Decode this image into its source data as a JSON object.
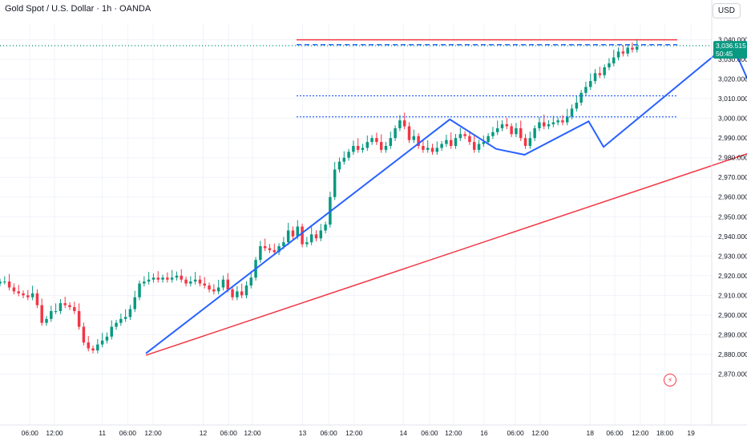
{
  "header": {
    "title": "Gold Spot / U.S. Dollar · 1h · OANDA",
    "currency": "USD"
  },
  "price_badge": {
    "price": "3,036.515",
    "countdown": "50:45",
    "color": "#089981"
  },
  "colors": {
    "up": "#089981",
    "down": "#f23645",
    "blue": "#2962ff",
    "red": "#f23645",
    "grid": "#f0f3fa",
    "axis_text": "#131722"
  },
  "icons": [
    "flash-icon"
  ],
  "chart_data": {
    "type": "candlestick",
    "title": "Gold Spot / U.S. Dollar · 1h · OANDA",
    "y_axis": {
      "ticks": [
        "2,870.000",
        "2,880.000",
        "2,890.000",
        "2,900.000",
        "2,910.000",
        "2,920.000",
        "2,930.000",
        "2,940.000",
        "2,950.000",
        "2,960.000",
        "2,970.000",
        "2,980.000",
        "2,990.000",
        "3,000.000",
        "3,010.000",
        "3,020.000",
        "3,030.000",
        "3,040.000"
      ],
      "min": 2862,
      "max": 3048
    },
    "x_axis": {
      "ticks": [
        "06:00",
        "12:00",
        "11",
        "06:00",
        "12:00",
        "12",
        "06:00",
        "12:00",
        "13",
        "06:00",
        "12:00",
        "14",
        "06:00",
        "12:00",
        "16",
        "06:00",
        "12:00",
        "18",
        "06:00",
        "12:00",
        "18:00",
        "19"
      ]
    },
    "current_price": 3036.515,
    "horizontal_levels": [
      {
        "kind": "solid",
        "color": "red",
        "price": 3040.0
      },
      {
        "kind": "dashed",
        "color": "blue",
        "price": 3037.5
      },
      {
        "kind": "dotted",
        "color": "blue",
        "price": 3011.5
      },
      {
        "kind": "dotted",
        "color": "blue",
        "price": 3000.8
      },
      {
        "kind": "dotted",
        "color": "green",
        "price": 3037.0
      }
    ],
    "trendline_red": [
      {
        "t": 0.205,
        "p": 2879.5
      },
      {
        "t": 1.095,
        "p": 2987.5
      }
    ],
    "zigzag_blue": [
      {
        "t": 0.205,
        "p": 2880.5
      },
      {
        "t": 0.632,
        "p": 2999.5
      },
      {
        "t": 0.697,
        "p": 2984.5
      },
      {
        "t": 0.737,
        "p": 2981.5
      },
      {
        "t": 0.827,
        "p": 2998.5
      },
      {
        "t": 0.848,
        "p": 2985.5
      },
      {
        "t": 1.027,
        "p": 3039.0
      },
      {
        "t": 1.063,
        "p": 3009.5
      }
    ],
    "candles_close": [
      2917,
      2917,
      2914,
      2912,
      2911,
      2910,
      2909,
      2911,
      2905,
      2896,
      2898,
      2902,
      2902,
      2906,
      2905,
      2904,
      2902,
      2894,
      2886,
      2883,
      2882,
      2885,
      2887,
      2889,
      2894,
      2896,
      2898,
      2899,
      2903,
      2909,
      2916,
      2917,
      2918,
      2919,
      2918,
      2919,
      2918,
      2919,
      2920,
      2918,
      2916,
      2917,
      2918,
      2916,
      2915,
      2913,
      2912,
      2914,
      2918,
      2913,
      2909,
      2912,
      2910,
      2915,
      2919,
      2928,
      2935,
      2934,
      2933,
      2932,
      2935,
      2937,
      2943,
      2940,
      2945,
      2936,
      2937,
      2941,
      2939,
      2943,
      2946,
      2960,
      2974,
      2978,
      2980,
      2983,
      2986,
      2984,
      2985,
      2988,
      2990,
      2988,
      2984,
      2986,
      2990,
      2995,
      2999,
      2996,
      2989,
      2991,
      2986,
      2984,
      2985,
      2983,
      2985,
      2987,
      2989,
      2986,
      2990,
      2992,
      2991,
      2988,
      2984,
      2987,
      2988,
      2991,
      2993,
      2995,
      2997,
      2996,
      2992,
      2995,
      2990,
      2986,
      2990,
      2995,
      2998,
      2996,
      2997,
      2998,
      2999,
      2998,
      3001,
      3005,
      3008,
      3013,
      3016,
      3019,
      3023,
      3022,
      3026,
      3028,
      3031,
      3034,
      3033,
      3036,
      3035,
      3036.5
    ]
  }
}
